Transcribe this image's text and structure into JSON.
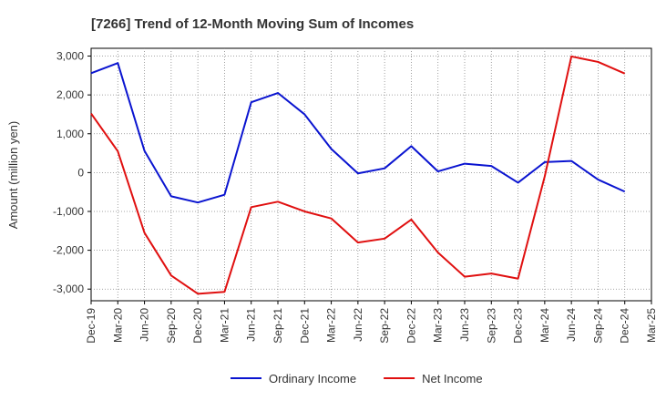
{
  "chart_data": {
    "type": "line",
    "title": "[7266]  Trend of 12-Month Moving Sum of Incomes",
    "xlabel": "",
    "ylabel": "Amount (million yen)",
    "ylim": [
      -3300,
      3200
    ],
    "yticks": [
      -3000,
      -2000,
      -1000,
      0,
      1000,
      2000,
      3000
    ],
    "ytick_labels": [
      "-3,000",
      "-2,000",
      "-1,000",
      "0",
      "1,000",
      "2,000",
      "3,000"
    ],
    "grid": true,
    "legend_position": "bottom-center",
    "categories": [
      "Dec-19",
      "Mar-20",
      "Jun-20",
      "Sep-20",
      "Dec-20",
      "Mar-21",
      "Jun-21",
      "Sep-21",
      "Dec-21",
      "Mar-22",
      "Jun-22",
      "Sep-22",
      "Dec-22",
      "Mar-23",
      "Jun-23",
      "Sep-23",
      "Dec-23",
      "Mar-24",
      "Jun-24",
      "Sep-24",
      "Dec-24",
      "Mar-25"
    ],
    "series": [
      {
        "name": "Ordinary Income",
        "color": "#0a14d0",
        "values": [
          2560,
          2820,
          560,
          -610,
          -770,
          -570,
          1810,
          2050,
          1500,
          610,
          -20,
          110,
          680,
          30,
          230,
          170,
          -260,
          270,
          300,
          -180,
          -490,
          null
        ]
      },
      {
        "name": "Net Income",
        "color": "#e01010",
        "values": [
          1520,
          550,
          -1550,
          -2650,
          -3120,
          -3070,
          -890,
          -750,
          -1000,
          -1180,
          -1800,
          -1700,
          -1210,
          -2060,
          -2680,
          -2600,
          -2730,
          -100,
          2990,
          2850,
          2550,
          null
        ]
      }
    ]
  }
}
